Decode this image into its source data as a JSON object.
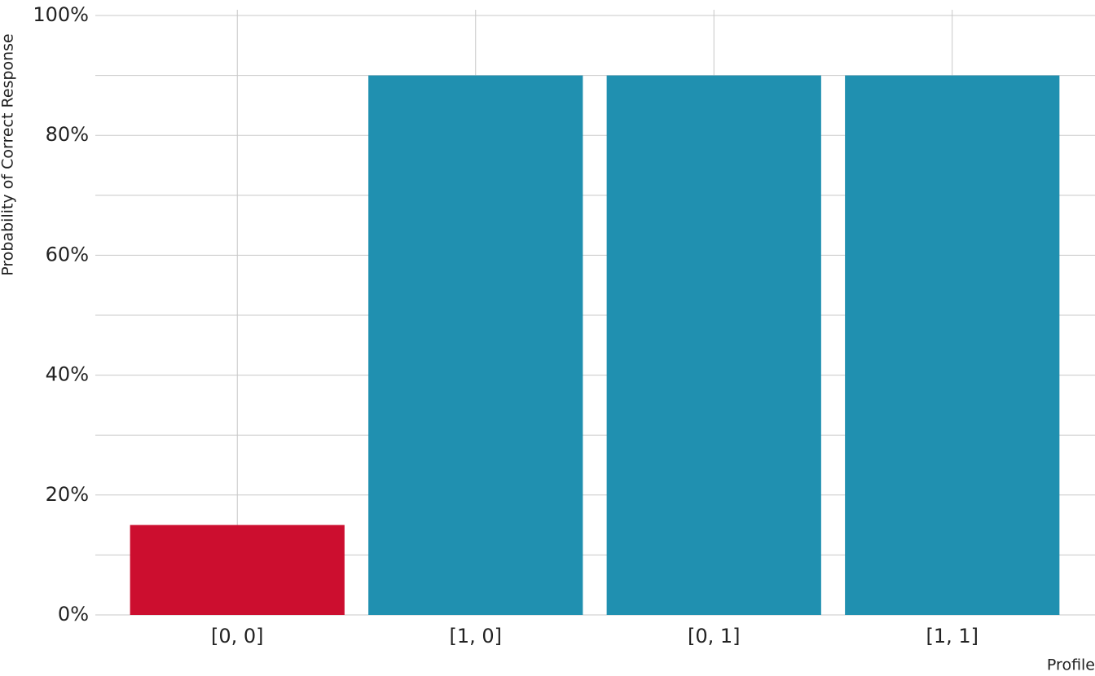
{
  "chart_data": {
    "type": "bar",
    "x_label": "Profile",
    "y_label": "Probability of Correct Response",
    "categories": [
      "[0, 0]",
      "[1, 0]",
      "[0, 1]",
      "[1, 1]"
    ],
    "values": [
      15,
      90,
      90,
      90
    ],
    "colors": [
      "#cc0e2f",
      "#2090b0",
      "#2090b0",
      "#2090b0"
    ],
    "ylim": [
      0,
      100
    ],
    "yticks": [
      {
        "value": 0,
        "label": "0%"
      },
      {
        "value": 20,
        "label": "20%"
      },
      {
        "value": 40,
        "label": "40%"
      },
      {
        "value": 60,
        "label": "60%"
      },
      {
        "value": 80,
        "label": "80%"
      },
      {
        "value": 100,
        "label": "100%"
      }
    ],
    "minor_yticks": [
      10,
      30,
      50,
      70,
      90
    ],
    "grid": true
  }
}
